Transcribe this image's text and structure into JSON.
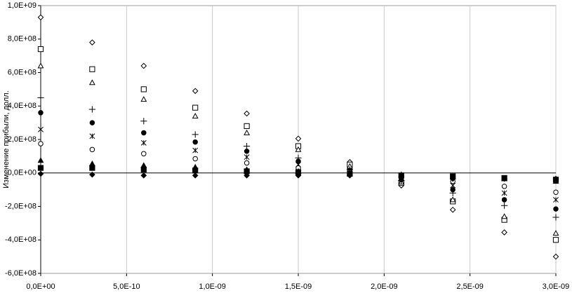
{
  "chart_data": {
    "type": "scatter",
    "y_label": "Изменение прибыли, долл.",
    "x": [
      0,
      3e-10,
      6e-10,
      9e-10,
      1.2e-09,
      1.5e-09,
      1.8e-09,
      2.1e-09,
      2.4e-09,
      2.7e-09,
      3e-09
    ],
    "xlim": [
      0,
      3e-09
    ],
    "xticks": [
      {
        "value": 0,
        "label": "0,0E+00"
      },
      {
        "value": 5e-10,
        "label": "5,0E-10"
      },
      {
        "value": 1e-09,
        "label": "1,0E-09"
      },
      {
        "value": 1.5e-09,
        "label": "1,5E-09"
      },
      {
        "value": 2e-09,
        "label": "2,0E-09"
      },
      {
        "value": 2.5e-09,
        "label": "2,5E-09"
      },
      {
        "value": 3e-09,
        "label": "3,0E-09"
      }
    ],
    "ylim": [
      -600000000,
      1000000000
    ],
    "yticks": [
      {
        "value": 1000000000,
        "label": "1,0E+09"
      },
      {
        "value": 800000000,
        "label": "8,0E+08"
      },
      {
        "value": 600000000,
        "label": "6,0E+08"
      },
      {
        "value": 400000000,
        "label": "4,0E+08"
      },
      {
        "value": 200000000,
        "label": "2,0E+08"
      },
      {
        "value": 0,
        "label": "0,0E+00"
      },
      {
        "value": -200000000,
        "label": "-2,0E+08"
      },
      {
        "value": -400000000,
        "label": "-4,0E+08"
      },
      {
        "value": -600000000,
        "label": "-6,0E+08"
      }
    ],
    "grid": "x",
    "series": [
      {
        "marker": "diamond",
        "filled": false,
        "color": "#000000",
        "values": [
          930000000,
          780000000,
          640000000,
          490000000,
          355000000,
          205000000,
          65000000,
          -75000000,
          -220000000,
          -355000000,
          -500000000
        ]
      },
      {
        "marker": "square",
        "filled": false,
        "color": "#000000",
        "values": [
          740000000,
          620000000,
          500000000,
          390000000,
          280000000,
          160000000,
          50000000,
          -60000000,
          -170000000,
          -280000000,
          -400000000
        ]
      },
      {
        "marker": "triangle",
        "filled": false,
        "color": "#000000",
        "values": [
          640000000,
          540000000,
          440000000,
          340000000,
          240000000,
          140000000,
          40000000,
          -55000000,
          -160000000,
          -260000000,
          -360000000
        ]
      },
      {
        "marker": "plus",
        "filled": false,
        "color": "#000000",
        "values": [
          450000000,
          380000000,
          310000000,
          230000000,
          160000000,
          90000000,
          20000000,
          -45000000,
          -120000000,
          -195000000,
          -265000000
        ]
      },
      {
        "marker": "circle",
        "filled": true,
        "color": "#000000",
        "values": [
          360000000,
          300000000,
          240000000,
          185000000,
          130000000,
          70000000,
          15000000,
          -40000000,
          -100000000,
          -160000000,
          -215000000
        ]
      },
      {
        "marker": "star",
        "filled": false,
        "color": "#000000",
        "values": [
          260000000,
          220000000,
          180000000,
          135000000,
          95000000,
          50000000,
          10000000,
          -30000000,
          -75000000,
          -120000000,
          -160000000
        ]
      },
      {
        "marker": "circle",
        "filled": false,
        "color": "#000000",
        "values": [
          175000000,
          140000000,
          115000000,
          85000000,
          60000000,
          30000000,
          5000000,
          -20000000,
          -50000000,
          -80000000,
          -115000000
        ]
      },
      {
        "marker": "triangle",
        "filled": true,
        "color": "#000000",
        "values": [
          75000000,
          55000000,
          45000000,
          35000000,
          20000000,
          10000000,
          2000000,
          -10000000,
          -25000000,
          -35000000,
          -50000000
        ]
      },
      {
        "marker": "square",
        "filled": true,
        "color": "#000000",
        "values": [
          30000000,
          30000000,
          20000000,
          15000000,
          10000000,
          5000000,
          -5000000,
          -15000000,
          -20000000,
          -30000000,
          -40000000
        ]
      },
      {
        "marker": "diamond",
        "filled": true,
        "color": "#000000",
        "values": [
          -5000000,
          -10000000,
          -15000000,
          -15000000,
          -15000000,
          -15000000,
          -15000000,
          -30000000,
          -35000000,
          -35000000,
          -35000000
        ]
      }
    ]
  }
}
